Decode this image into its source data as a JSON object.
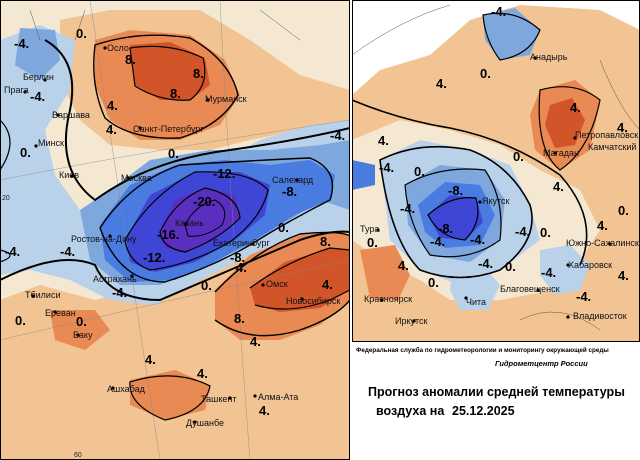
{
  "colors": {
    "warm_strong": "#d2552a",
    "warm": "#e98a55",
    "warm_light": "#f2c493",
    "neutral": "#f5e8d2",
    "cool_light": "#b9d2ea",
    "cool": "#7ea7dd",
    "cold": "#4a7be0",
    "cold_strong": "#3f46d6",
    "cold_deep": "#5a2fbf"
  },
  "info": {
    "org": "Федеральная служба по гидрометеорологии и мониторингу окружающей среды",
    "center": "Гидрометцентр России",
    "title_line1": "Прогноз аномалии средней температуры",
    "title_prefix": "воздуха на",
    "date": "25.12.2025"
  },
  "west": {
    "cities": [
      "Осло",
      "Берлин",
      "Прага",
      "Варшава",
      "Минск",
      "Санкт-Петербург",
      "Мурманск",
      "Москва",
      "Киев",
      "Ростов-на-Дону",
      "Астрахань",
      "Тбилиси",
      "Ереван",
      "Баку",
      "Казань",
      "Екатеринбург",
      "Салехард",
      "Омск",
      "Новосибирск",
      "Ашхабад",
      "Ташкент",
      "Алма-Ата",
      "Душанбе"
    ],
    "labels": [
      "-4.",
      "0.",
      "8.",
      "4.",
      "-4.",
      "8.",
      "8.",
      "4.",
      "0.",
      "0.",
      "-4.",
      "-12.",
      "-20.",
      "-16.",
      "-12.",
      "-8.",
      "-8.",
      "-4.",
      "-4.",
      "0.",
      "4.",
      "0.",
      "8.",
      "4.",
      "8.",
      "4.",
      "0.",
      "4.",
      "0.",
      "4.",
      "4.",
      "-4."
    ],
    "small": [
      "20",
      "60"
    ]
  },
  "east": {
    "cities": [
      "Анадырь",
      "Петропавловск",
      "Камчатский",
      "Магадан",
      "Якутск",
      "Тура",
      "Южно-Сахалинск",
      "Хабаровск",
      "Благовещенск",
      "Красноярск",
      "Иркутск",
      "Чита",
      "Владивосток"
    ],
    "labels": [
      "-4.",
      "0.",
      "4.",
      "4.",
      "-4.",
      "0.",
      "0.",
      "4.",
      "4.",
      "0.",
      "-4.",
      "-8.",
      "-4.",
      "-8.",
      "-4.",
      "-4.",
      "4.",
      "0.",
      "-4.",
      "0.",
      "0.",
      "-4.",
      "0.",
      "4.",
      "4.",
      "4.",
      "-4."
    ]
  }
}
